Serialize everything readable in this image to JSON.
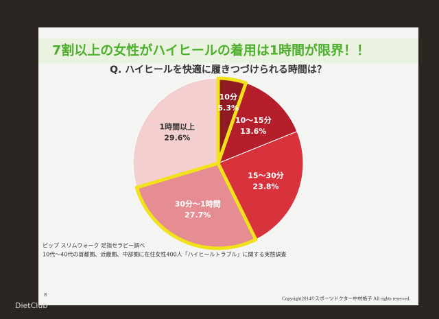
{
  "chart_data": {
    "type": "pie",
    "title": "7割以上の女性がハイヒールの着用は1時間が限界！！",
    "subtitle": "Q. ハイヒールを快適に履きつづけられる時間は？",
    "categories": [
      "10分",
      "10～15分",
      "15～30分",
      "30分～1時間",
      "1時間以上"
    ],
    "values": [
      5.3,
      13.6,
      23.8,
      27.7,
      29.6
    ],
    "value_labels": [
      "5.3%",
      "13.6%",
      "23.8%",
      "27.7%",
      "29.6%"
    ],
    "colors": [
      "#8e1b22",
      "#b51f2b",
      "#d8333c",
      "#e58d92",
      "#f3cfd0"
    ],
    "highlight": [
      true,
      false,
      false,
      true,
      false
    ],
    "highlight_color": "#f2e21c"
  },
  "notes": [
    "ピップ スリムウォーク 足指セラピー調べ",
    "10代～40代の首都圏、近畿圏、中部圏に在住女性400人「ハイヒールトラブル」に関する実態調査"
  ],
  "page_number": "8",
  "copyright": "Copyright2014©スポーツドクター中村格子 All rights reserved.",
  "watermark": "DietClub"
}
